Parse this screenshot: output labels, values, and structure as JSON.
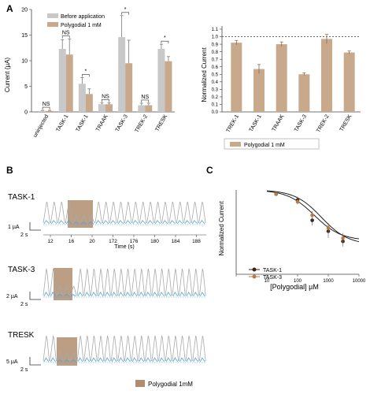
{
  "panels": {
    "a": "A",
    "b": "B",
    "c": "C"
  },
  "colors": {
    "before": "#c8c8c8",
    "after": "#c8a98c",
    "trace_gray": "#a9a9a9",
    "trace_blue": "#4aa6d6",
    "box": "#b08d70",
    "task1": "#3b2314",
    "task3": "#b67b45"
  },
  "chart_data": [
    {
      "type": "bar",
      "id": "current-bars",
      "ylabel": "Current (µA)",
      "ylim": [
        0,
        20
      ],
      "yticks": [
        0,
        5,
        10,
        15,
        20
      ],
      "categories": [
        "uninjected",
        "TASK-1",
        "TASK-1",
        "TRAAK",
        "TASK-3",
        "TREK-2",
        "TRESK"
      ],
      "series": [
        {
          "name": "Before application",
          "values": [
            0.2,
            12.3,
            5.5,
            1.5,
            14.6,
            1.3,
            12.3
          ],
          "errors": [
            0.1,
            1.8,
            1.2,
            0.3,
            4.2,
            0.4,
            0.9
          ]
        },
        {
          "name": "Polygodial 1 mM",
          "values": [
            0.2,
            11.2,
            3.5,
            1.5,
            9.5,
            1.3,
            9.9
          ],
          "errors": [
            0.1,
            3.0,
            1.0,
            0.3,
            4.5,
            0.4,
            0.9
          ]
        }
      ],
      "significance": [
        "NS",
        "NS",
        "*",
        "NS",
        "*",
        "NS",
        "*"
      ]
    },
    {
      "type": "bar",
      "id": "normalized-bars",
      "ylabel": "Normalized Current",
      "ylim": [
        0,
        1.1
      ],
      "yticks": [
        "0.0",
        "0.1",
        "0.2",
        "0.3",
        "0.4",
        "0.5",
        "0.6",
        "0.7",
        "0.8",
        "0.9",
        "1.0",
        "1.1"
      ],
      "categories": [
        "TREK-1",
        "TASK-1",
        "TRAAK",
        "TASK-3",
        "TREK-2",
        "TRESK"
      ],
      "values": [
        0.92,
        0.57,
        0.9,
        0.5,
        0.97,
        0.79
      ],
      "errors": [
        0.03,
        0.06,
        0.03,
        0.02,
        0.06,
        0.02
      ],
      "reference_line": 1.0,
      "legend": "Polygodial 1 mM"
    },
    {
      "type": "line",
      "id": "dose-response",
      "xlabel": "[Polygodial] µM",
      "ylabel": "Normalized Current",
      "xscale": "log",
      "xlim": [
        1,
        10000
      ],
      "xticks": [
        "1",
        "10",
        "100",
        "1000",
        "10000"
      ],
      "ylim": [
        0,
        1
      ],
      "series": [
        {
          "name": "TASK-1",
          "x": [
            20,
            100,
            300,
            1000,
            3000
          ],
          "y": [
            0.95,
            0.88,
            0.64,
            0.51,
            0.39
          ],
          "errors": [
            0.01,
            0.04,
            0.06,
            0.08,
            0.06
          ],
          "ic50": 600,
          "bottom": 0.35
        },
        {
          "name": "TASK-3",
          "x": [
            20,
            100,
            300,
            1000,
            3000
          ],
          "y": [
            0.95,
            0.86,
            0.7,
            0.55,
            0.43
          ],
          "errors": [
            0.01,
            0.03,
            0.05,
            0.06,
            0.06
          ],
          "ic50": 350,
          "bottom": 0.4
        }
      ]
    }
  ],
  "traces": {
    "task1": {
      "label": "TASK-1",
      "scale_current": "1 µA",
      "scale_time": "2 s",
      "time_label": "Time (s)",
      "time_ticks": [
        "12",
        "16",
        "20",
        "172",
        "176",
        "180",
        "184",
        "188"
      ]
    },
    "task3": {
      "label": "TASK-3",
      "scale_current": "2 µA",
      "scale_time": "2 s"
    },
    "tresk": {
      "label": "TRESK",
      "scale_current": "5 µA",
      "scale_time": "2 s"
    }
  },
  "bottom_legend": "Polygodial 1mM"
}
